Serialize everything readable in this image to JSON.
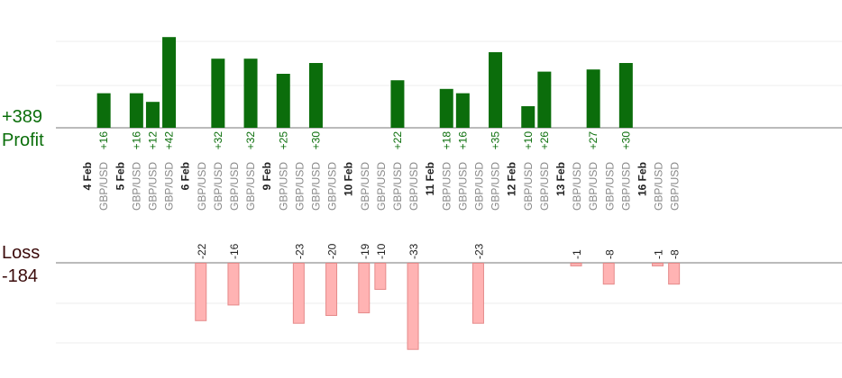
{
  "summary": {
    "profit_total": "+389",
    "profit_label": "Profit",
    "loss_label": "Loss",
    "loss_total": "-184"
  },
  "colors": {
    "profit_bar": "#0b6d0b",
    "loss_bar": "#ffb3b3",
    "loss_bar_border": "#e58a8a",
    "profit_text": "#0a6e0a",
    "loss_text": "#222222",
    "pair_text": "#888888",
    "date_text": "#222222"
  },
  "chart_data": {
    "type": "bar",
    "columns": [
      {
        "kind": "date",
        "label": "4 Feb"
      },
      {
        "kind": "trade",
        "pair": "GBP/USD",
        "value": 16
      },
      {
        "kind": "date",
        "label": "5 Feb"
      },
      {
        "kind": "trade",
        "pair": "GBP/USD",
        "value": 16
      },
      {
        "kind": "trade",
        "pair": "GBP/USD",
        "value": 12
      },
      {
        "kind": "trade",
        "pair": "GBP/USD",
        "value": 42
      },
      {
        "kind": "date",
        "label": "6 Feb"
      },
      {
        "kind": "trade",
        "pair": "GBP/USD",
        "value": -22
      },
      {
        "kind": "trade",
        "pair": "GBP/USD",
        "value": 32
      },
      {
        "kind": "trade",
        "pair": "GBP/USD",
        "value": -16
      },
      {
        "kind": "trade",
        "pair": "GBP/USD",
        "value": 32
      },
      {
        "kind": "date",
        "label": "9 Feb"
      },
      {
        "kind": "trade",
        "pair": "GBP/USD",
        "value": 25
      },
      {
        "kind": "trade",
        "pair": "GBP/USD",
        "value": -23
      },
      {
        "kind": "trade",
        "pair": "GBP/USD",
        "value": 30
      },
      {
        "kind": "trade",
        "pair": "GBP/USD",
        "value": -20
      },
      {
        "kind": "date",
        "label": "10 Feb"
      },
      {
        "kind": "trade",
        "pair": "GBP/USD",
        "value": -19
      },
      {
        "kind": "trade",
        "pair": "GBP/USD",
        "value": -10
      },
      {
        "kind": "trade",
        "pair": "GBP/USD",
        "value": 22
      },
      {
        "kind": "trade",
        "pair": "GBP/USD",
        "value": -33
      },
      {
        "kind": "date",
        "label": "11 Feb"
      },
      {
        "kind": "trade",
        "pair": "GBP/USD",
        "value": 18
      },
      {
        "kind": "trade",
        "pair": "GBP/USD",
        "value": 16
      },
      {
        "kind": "trade",
        "pair": "GBP/USD",
        "value": -23
      },
      {
        "kind": "trade",
        "pair": "GBP/USD",
        "value": 35
      },
      {
        "kind": "date",
        "label": "12 Feb"
      },
      {
        "kind": "trade",
        "pair": "GBP/USD",
        "value": 10
      },
      {
        "kind": "trade",
        "pair": "GBP/USD",
        "value": 26
      },
      {
        "kind": "date",
        "label": "13 Feb"
      },
      {
        "kind": "trade",
        "pair": "GBP/USD",
        "value": -1
      },
      {
        "kind": "trade",
        "pair": "GBP/USD",
        "value": 27
      },
      {
        "kind": "trade",
        "pair": "GBP/USD",
        "value": -8
      },
      {
        "kind": "trade",
        "pair": "GBP/USD",
        "value": 30
      },
      {
        "kind": "date",
        "label": "16 Feb"
      },
      {
        "kind": "trade",
        "pair": "GBP/USD",
        "value": -1
      },
      {
        "kind": "trade",
        "pair": "GBP/USD",
        "value": -8
      }
    ]
  }
}
